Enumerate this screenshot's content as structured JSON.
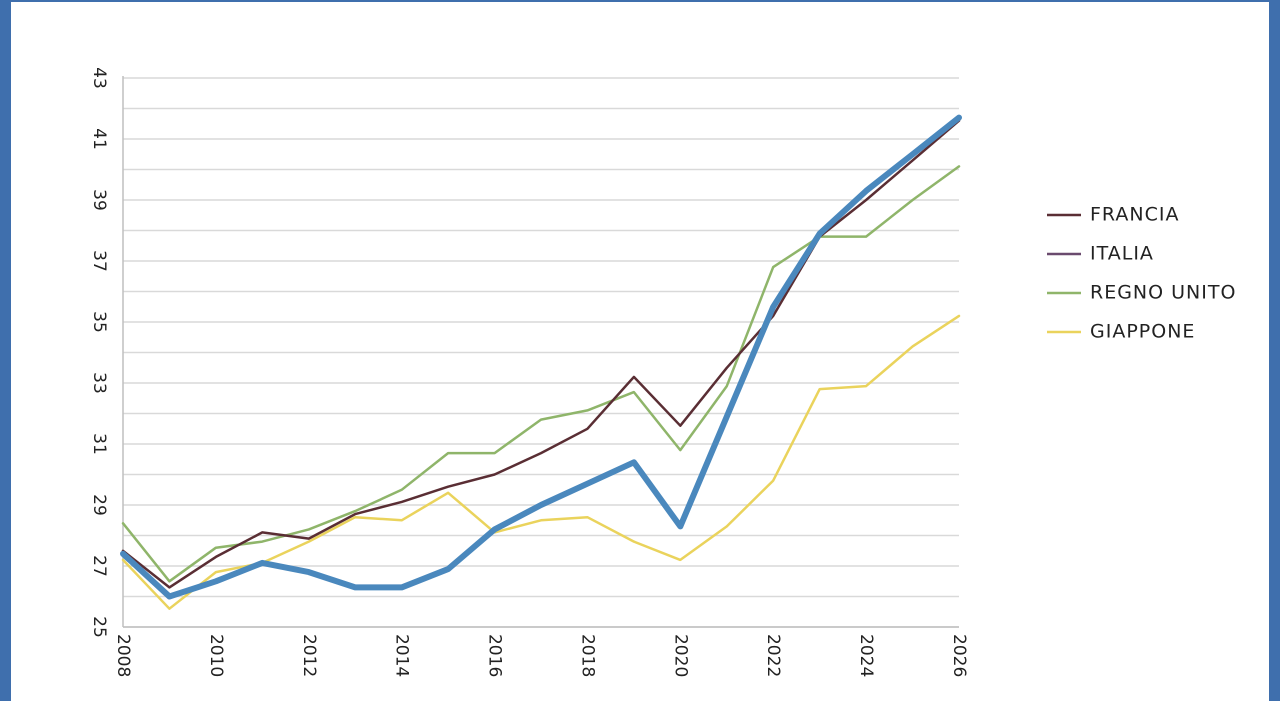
{
  "chart_data": {
    "type": "line",
    "x": [
      2008,
      2009,
      2010,
      2011,
      2012,
      2013,
      2014,
      2015,
      2016,
      2017,
      2018,
      2019,
      2020,
      2021,
      2022,
      2023,
      2024,
      2025,
      2026
    ],
    "x_ticks": [
      "2008",
      "2010",
      "2012",
      "2014",
      "2016",
      "2018",
      "2020",
      "2022",
      "2024",
      "2026"
    ],
    "y_ticks": [
      "25",
      "27",
      "29",
      "31",
      "33",
      "35",
      "37",
      "39",
      "41",
      "43"
    ],
    "ylim": [
      25,
      43
    ],
    "xlim": [
      2008,
      2026
    ],
    "grid": true,
    "legend_position": "right",
    "series": [
      {
        "name": "FRANCIA",
        "color": "#5a2e34",
        "values": [
          27.5,
          26.3,
          27.3,
          28.1,
          27.9,
          28.7,
          29.1,
          29.6,
          30.0,
          30.7,
          31.5,
          33.2,
          31.6,
          33.5,
          35.2,
          37.8,
          39.0,
          40.3,
          41.6
        ]
      },
      {
        "name": "ITALIA",
        "color": "#4a88bd",
        "values": [
          27.4,
          26.0,
          26.5,
          27.1,
          26.8,
          26.3,
          26.3,
          26.9,
          28.2,
          29.0,
          29.7,
          30.4,
          28.3,
          31.9,
          35.5,
          37.9,
          39.3,
          40.5,
          41.7
        ]
      },
      {
        "name": "REGNO UNITO",
        "color": "#8fb56a",
        "values": [
          28.4,
          26.5,
          27.6,
          27.8,
          28.2,
          28.8,
          29.5,
          30.7,
          30.7,
          31.8,
          32.1,
          32.7,
          30.8,
          32.9,
          36.8,
          37.8,
          37.8,
          39.0,
          40.1
        ]
      },
      {
        "name": "GIAPPONE",
        "color": "#ead35c",
        "values": [
          27.2,
          25.6,
          26.8,
          27.1,
          27.8,
          28.6,
          28.5,
          29.4,
          28.1,
          28.5,
          28.6,
          27.8,
          27.2,
          28.3,
          29.8,
          32.8,
          32.9,
          34.2,
          35.2
        ]
      }
    ]
  }
}
